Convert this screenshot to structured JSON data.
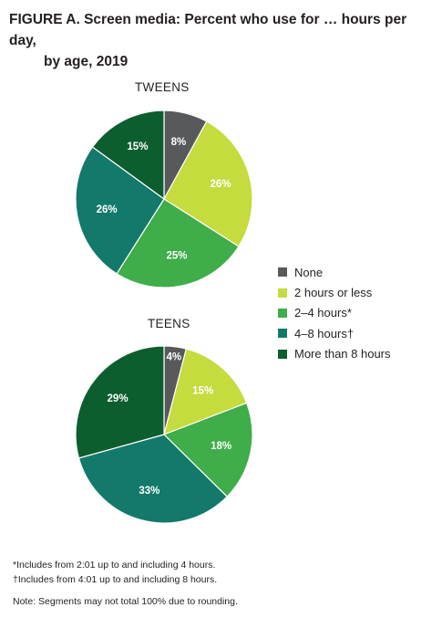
{
  "header": {
    "title_line1": "FIGURE A. Screen media: Percent who use for … hours per day,",
    "title_line2": "by age, 2019"
  },
  "colors": {
    "None": "#58595b",
    "2 hours or less": "#c5db3e",
    "2–4 hours*": "#3fad49",
    "4–8 hours†": "#13796a",
    "More than 8 hours": "#0c5e2e"
  },
  "legend": {
    "items": [
      {
        "label": "None",
        "color": "#58595b"
      },
      {
        "label": "2 hours or less",
        "color": "#c5db3e"
      },
      {
        "label": "2–4 hours*",
        "color": "#3fad49"
      },
      {
        "label": "4–8 hours†",
        "color": "#13796a"
      },
      {
        "label": "More than 8 hours",
        "color": "#0c5e2e"
      }
    ]
  },
  "chart_data": [
    {
      "type": "pie",
      "title": "TWEENS",
      "slices": [
        {
          "label": "None",
          "value": 8,
          "display": "8%"
        },
        {
          "label": "2 hours or less",
          "value": 26,
          "display": "26%"
        },
        {
          "label": "2–4 hours*",
          "value": 25,
          "display": "25%"
        },
        {
          "label": "4–8 hours†",
          "value": 26,
          "display": "26%"
        },
        {
          "label": "More than 8 hours",
          "value": 15,
          "display": "15%"
        }
      ]
    },
    {
      "type": "pie",
      "title": "TEENS",
      "slices": [
        {
          "label": "None",
          "value": 4,
          "display": "4%"
        },
        {
          "label": "2 hours or less",
          "value": 15,
          "display": "15%"
        },
        {
          "label": "2–4 hours*",
          "value": 18,
          "display": "18%"
        },
        {
          "label": "4–8 hours†",
          "value": 33,
          "display": "33%"
        },
        {
          "label": "More than 8 hours",
          "value": 29,
          "display": "29%"
        }
      ]
    }
  ],
  "footnotes": {
    "note1": "*Includes from 2:01 up to and including 4 hours.",
    "note2": "†Includes from 4:01 up to and including 8 hours.",
    "note3": "Note: Segments may not total 100% due to rounding."
  }
}
